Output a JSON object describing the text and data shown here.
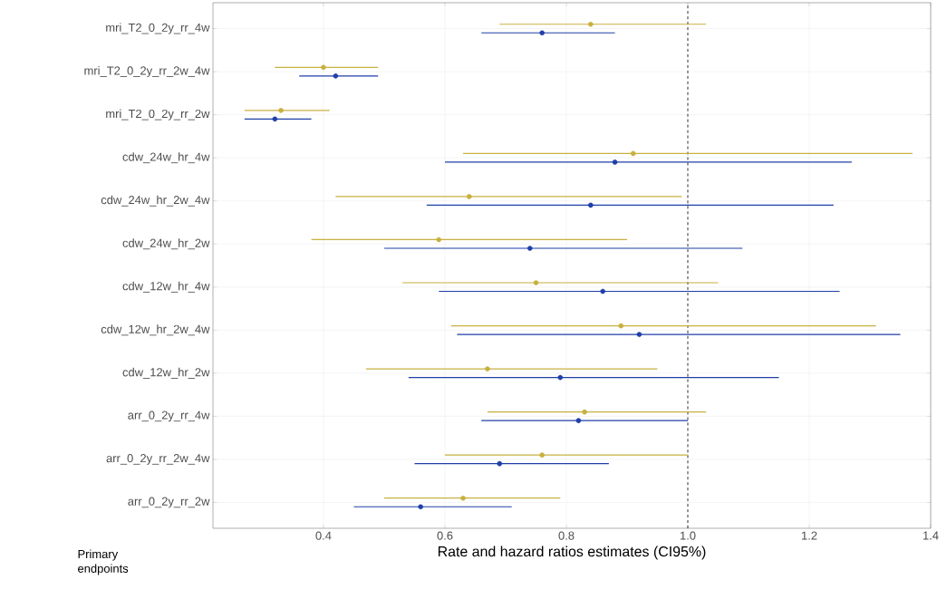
{
  "chart_data": {
    "type": "scatter",
    "orientation": "horizontal",
    "xlabel": "Rate and hazard ratios estimates (CI95%)",
    "categories": [
      "mri_T2_0_2y_rr_4w",
      "mri_T2_0_2y_rr_2w_4w",
      "mri_T2_0_2y_rr_2w",
      "cdw_24w_hr_4w",
      "cdw_24w_hr_2w_4w",
      "cdw_24w_hr_2w",
      "cdw_12w_hr_4w",
      "cdw_12w_hr_2w_4w",
      "cdw_12w_hr_2w",
      "arr_0_2y_rr_4w",
      "arr_0_2y_rr_2w_4w",
      "arr_0_2y_rr_2w"
    ],
    "series": [
      {
        "color": "#c8b040",
        "values": [
          0.84,
          0.4,
          0.33,
          0.91,
          0.64,
          0.59,
          0.75,
          0.89,
          0.67,
          0.83,
          0.76,
          0.63
        ],
        "errors": [
          [
            0.69,
            1.03
          ],
          [
            0.32,
            0.49
          ],
          [
            0.27,
            0.41
          ],
          [
            0.63,
            1.37
          ],
          [
            0.42,
            0.99
          ],
          [
            0.38,
            0.9
          ],
          [
            0.53,
            1.05
          ],
          [
            0.61,
            1.31
          ],
          [
            0.47,
            0.95
          ],
          [
            0.67,
            1.03
          ],
          [
            0.6,
            1.0
          ],
          [
            0.5,
            0.79
          ]
        ]
      },
      {
        "color": "#1f3fa8",
        "values": [
          0.76,
          0.42,
          0.32,
          0.88,
          0.84,
          0.74,
          0.86,
          0.92,
          0.79,
          0.82,
          0.69,
          0.56
        ],
        "errors": [
          [
            0.66,
            0.88
          ],
          [
            0.36,
            0.49
          ],
          [
            0.27,
            0.38
          ],
          [
            0.6,
            1.27
          ],
          [
            0.57,
            1.24
          ],
          [
            0.5,
            1.09
          ],
          [
            0.59,
            1.25
          ],
          [
            0.62,
            1.35
          ],
          [
            0.54,
            1.15
          ],
          [
            0.66,
            1.0
          ],
          [
            0.55,
            0.87
          ],
          [
            0.45,
            0.71
          ]
        ]
      }
    ],
    "xlim": [
      0.218,
      1.4
    ],
    "xticks": [
      0.4,
      0.6,
      0.8,
      {
        "value": 1.0,
        "label": "1.0"
      },
      1.2,
      1.4
    ],
    "ref_lines": [
      {
        "axis": "x",
        "value": 1.0,
        "color": "#000000",
        "line_style": "dashed"
      }
    ],
    "grid": true,
    "marker": "circle",
    "annotations": [
      "Primary endpoints"
    ]
  }
}
